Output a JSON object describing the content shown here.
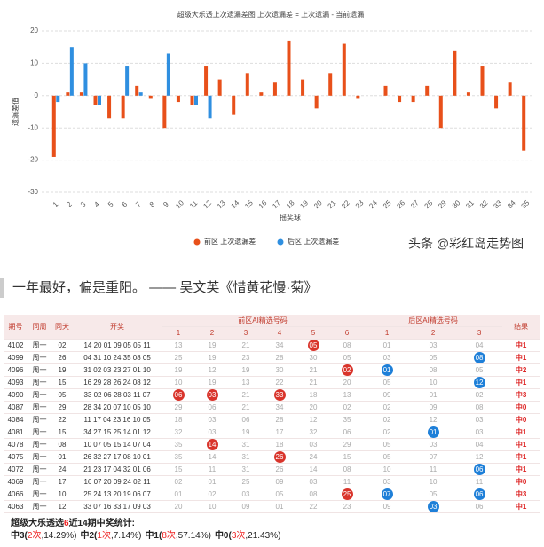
{
  "chart_data": {
    "type": "bar",
    "title": "超级大乐透上次遗漏差图 上次遗漏差 = 上次遗漏 - 当前遗漏",
    "x_label": "摇奖球",
    "y_label": "遗漏差值",
    "categories": [
      "1",
      "2",
      "3",
      "4",
      "5",
      "6",
      "7",
      "8",
      "9",
      "10",
      "11",
      "12",
      "13",
      "14",
      "15",
      "16",
      "17",
      "18",
      "19",
      "20",
      "21",
      "22",
      "23",
      "24",
      "25",
      "26",
      "27",
      "28",
      "29",
      "30",
      "31",
      "32",
      "33",
      "34",
      "35"
    ],
    "series": [
      {
        "name": "前区 上次遗漏差",
        "color": "#e8501a",
        "values": [
          -19,
          1,
          1,
          -3,
          -7,
          -7,
          3,
          -1,
          -10,
          -2,
          -3,
          9,
          5,
          -6,
          7,
          1,
          4,
          17,
          5,
          -4,
          7,
          16,
          -1,
          0,
          3,
          -2,
          -2,
          3,
          -10,
          14,
          1,
          9,
          -4,
          4,
          -17
        ]
      },
      {
        "name": "后区 上次遗漏差",
        "color": "#2f8fe0",
        "values": [
          -2,
          15,
          10,
          -3,
          0,
          9,
          1,
          0,
          13,
          0,
          -3,
          -7,
          null,
          null,
          null,
          null,
          null,
          null,
          null,
          null,
          null,
          null,
          null,
          null,
          null,
          null,
          null,
          null,
          null,
          null,
          null,
          null,
          null,
          null,
          null
        ]
      }
    ],
    "ylim": [
      -30,
      20
    ],
    "yticks": [
      -30,
      -20,
      -10,
      0,
      10,
      20
    ],
    "grid": true,
    "legend": "bottom",
    "watermark": "头条 @彩红岛走势图"
  },
  "quote": "一年最好，偏是重阳。 —— 吴文英《惜黄花慢·菊》",
  "table": {
    "headers": {
      "issue": "期号",
      "week": "同周",
      "day": "同天",
      "draw": "开奖",
      "front": "前区AI精选号码",
      "back": "后区AI精选号码",
      "result": "结果",
      "front_cols": [
        "1",
        "2",
        "3",
        "4",
        "5",
        "6"
      ],
      "back_cols": [
        "1",
        "2",
        "3"
      ]
    },
    "rows": [
      {
        "issue": "4102",
        "week": "周一",
        "day": "02",
        "draw": "14 20 01 09 05 05 11",
        "front": [
          "13",
          "19",
          "21",
          "34",
          "05",
          "08"
        ],
        "front_hits": [
          4
        ],
        "back": [
          "01",
          "03",
          "04"
        ],
        "back_hits": [],
        "result": "中1"
      },
      {
        "issue": "4099",
        "week": "周一",
        "day": "26",
        "draw": "04 31 10 24 35 08 05",
        "front": [
          "25",
          "19",
          "23",
          "28",
          "30",
          "05"
        ],
        "front_hits": [],
        "back": [
          "03",
          "05",
          "08"
        ],
        "back_hits": [
          2
        ],
        "result": "中1"
      },
      {
        "issue": "4096",
        "week": "周一",
        "day": "19",
        "draw": "31 02 03 23 27 01 10",
        "front": [
          "19",
          "12",
          "19",
          "30",
          "21",
          "02"
        ],
        "front_hits": [
          5
        ],
        "back": [
          "01",
          "08",
          "05"
        ],
        "back_hits": [
          0
        ],
        "result": "中2"
      },
      {
        "issue": "4093",
        "week": "周一",
        "day": "15",
        "draw": "16 29 28 26 24 08 12",
        "front": [
          "10",
          "19",
          "13",
          "22",
          "21",
          "20"
        ],
        "front_hits": [],
        "back": [
          "05",
          "10",
          "12"
        ],
        "back_hits": [
          2
        ],
        "result": "中1"
      },
      {
        "issue": "4090",
        "week": "周一",
        "day": "05",
        "draw": "33 02 06 28 03 11 07",
        "front": [
          "06",
          "03",
          "21",
          "33",
          "18",
          "13"
        ],
        "front_hits": [
          0,
          1,
          3
        ],
        "back": [
          "09",
          "01",
          "02"
        ],
        "back_hits": [],
        "result": "中3"
      },
      {
        "issue": "4087",
        "week": "周一",
        "day": "29",
        "draw": "28 34 20 07 10 05 10",
        "front": [
          "29",
          "06",
          "21",
          "34",
          "20",
          "02"
        ],
        "front_hits": [],
        "back": [
          "02",
          "09",
          "08"
        ],
        "back_hits": [],
        "result": "中0"
      },
      {
        "issue": "4084",
        "week": "周一",
        "day": "22",
        "draw": "11 17 04 23 16 10 05",
        "front": [
          "18",
          "03",
          "06",
          "28",
          "12",
          "35"
        ],
        "front_hits": [],
        "back": [
          "02",
          "12",
          "03"
        ],
        "back_hits": [],
        "result": "中0"
      },
      {
        "issue": "4081",
        "week": "周一",
        "day": "15",
        "draw": "34 27 15 25 14 01 12",
        "front": [
          "32",
          "03",
          "19",
          "17",
          "32",
          "06"
        ],
        "front_hits": [],
        "back": [
          "02",
          "01",
          "03"
        ],
        "back_hits": [
          1
        ],
        "result": "中1"
      },
      {
        "issue": "4078",
        "week": "周一",
        "day": "08",
        "draw": "10 07 05 15 14 07 04",
        "front": [
          "35",
          "14",
          "31",
          "18",
          "03",
          "29"
        ],
        "front_hits": [
          1
        ],
        "back": [
          "05",
          "03",
          "04"
        ],
        "back_hits": [],
        "result": "中1"
      },
      {
        "issue": "4075",
        "week": "周一",
        "day": "01",
        "draw": "26 32 27 17 08 10 01",
        "front": [
          "35",
          "14",
          "31",
          "26",
          "24",
          "15"
        ],
        "front_hits": [
          3
        ],
        "back": [
          "05",
          "07",
          "12"
        ],
        "back_hits": [],
        "result": "中1"
      },
      {
        "issue": "4072",
        "week": "周一",
        "day": "24",
        "draw": "21 23 17 04 32 01 06",
        "front": [
          "15",
          "11",
          "31",
          "26",
          "14",
          "08"
        ],
        "front_hits": [],
        "back": [
          "10",
          "11",
          "06"
        ],
        "back_hits": [
          2
        ],
        "result": "中1"
      },
      {
        "issue": "4069",
        "week": "周一",
        "day": "17",
        "draw": "16 07 20 09 24 02 11",
        "front": [
          "02",
          "01",
          "25",
          "09",
          "03",
          "11"
        ],
        "front_hits": [],
        "back": [
          "03",
          "10",
          "11"
        ],
        "back_hits": [],
        "result": "中0"
      },
      {
        "issue": "4066",
        "week": "周一",
        "day": "10",
        "draw": "25 24 13 20 19 06 07",
        "front": [
          "01",
          "02",
          "03",
          "05",
          "08",
          "25"
        ],
        "front_hits": [
          5
        ],
        "back": [
          "07",
          "05",
          "06"
        ],
        "back_hits": [
          0,
          2
        ],
        "result": "中3"
      },
      {
        "issue": "4063",
        "week": "周一",
        "day": "12",
        "draw": "33 07 16 33 17 09 03",
        "front": [
          "20",
          "10",
          "09",
          "01",
          "22",
          "23"
        ],
        "front_hits": [],
        "back": [
          "09",
          "03",
          "06"
        ],
        "back_hits": [
          1
        ],
        "result": "中1"
      }
    ]
  },
  "stats": {
    "title": [
      "超级大乐透选",
      "6",
      "近14期中奖统计:"
    ],
    "items": [
      {
        "label": "中3(",
        "count": "2次",
        "rest": ",14.29%)"
      },
      {
        "label": "中2(",
        "count": "1次",
        "rest": ",7.14%)"
      },
      {
        "label": "中1(",
        "count": "8次",
        "rest": ",57.14%)"
      },
      {
        "label": "中0(",
        "count": "3次",
        "rest": ",21.43%)"
      }
    ]
  }
}
